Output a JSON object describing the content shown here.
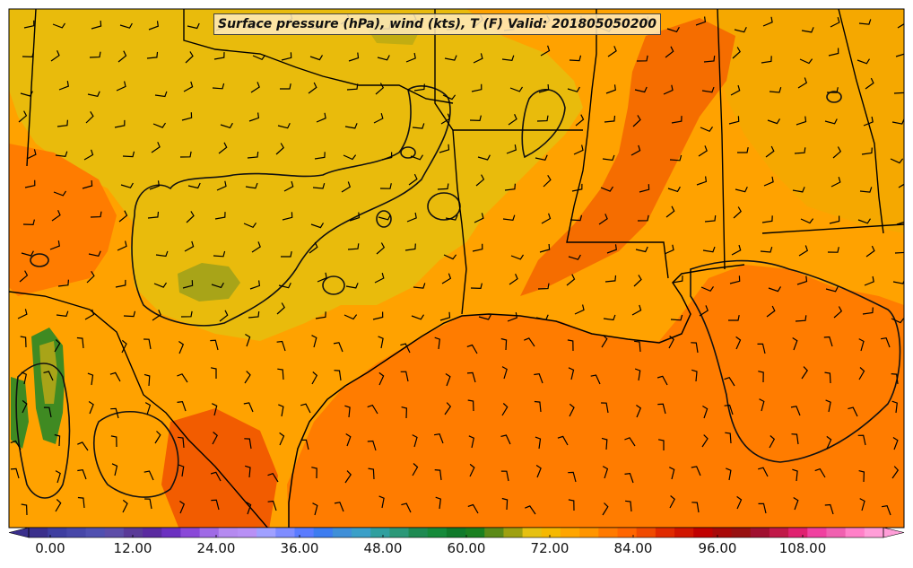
{
  "title": "Surface pressure (hPa), wind (kts), T (F) Valid: 201805050200",
  "colorbar": {
    "tick_labels": [
      "0.00",
      "12.00",
      "24.00",
      "36.00",
      "48.00",
      "60.00",
      "72.00",
      "84.00",
      "96.00",
      "108.00"
    ],
    "colors": [
      "#3a2f8c",
      "#3e3ea0",
      "#4747a8",
      "#5050b0",
      "#5d4da8",
      "#5a3a98",
      "#5a2aa0",
      "#6b30c0",
      "#8a48d8",
      "#9f6ae6",
      "#b58af0",
      "#b890f5",
      "#a0a0ff",
      "#7f8cff",
      "#5a7bff",
      "#3d7cf0",
      "#3f8fd8",
      "#3a9fc8",
      "#2f9f9f",
      "#2b9878",
      "#1e8a52",
      "#158a3a",
      "#0f7a2a",
      "#1a8020",
      "#5b8a18",
      "#9ea010",
      "#e6c010",
      "#f5b800",
      "#ffa500",
      "#ff9500",
      "#ff7a00",
      "#ff6500",
      "#f04a00",
      "#e02a00",
      "#d01500",
      "#c00000",
      "#a80808",
      "#981010",
      "#a01030",
      "#c01848",
      "#e02070",
      "#f040a0",
      "#f060b0",
      "#ff80c8",
      "#ff9ed8"
    ]
  },
  "map_colors": {
    "gulf": "#ff7c00",
    "warm_land": "#ffa200",
    "cool_land": "#e9bb0c",
    "olive": "#a8a418",
    "hot_band": "#f56d00",
    "green_high": "#3f8a22"
  }
}
